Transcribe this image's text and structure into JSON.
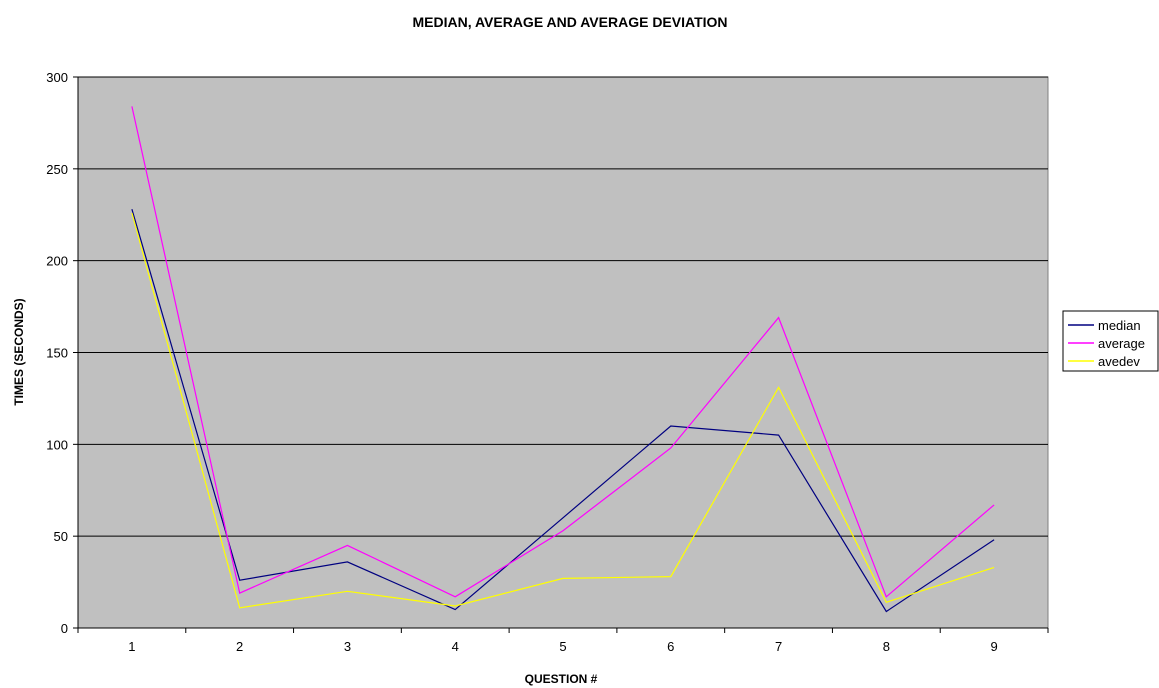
{
  "chart_data": {
    "type": "line",
    "title": "MEDIAN, AVERAGE AND AVERAGE DEVIATION",
    "xlabel": "QUESTION #",
    "ylabel": "TIMES (SECONDS)",
    "categories": [
      "1",
      "2",
      "3",
      "4",
      "5",
      "6",
      "7",
      "8",
      "9"
    ],
    "ylim": [
      0,
      300
    ],
    "yticks": [
      "0",
      "50",
      "100",
      "150",
      "200",
      "250",
      "300"
    ],
    "grid": true,
    "legend_position": "right",
    "plot_background": "#c0c0c0",
    "series": [
      {
        "name": "median",
        "color": "#000080",
        "values": [
          228,
          26,
          36,
          10,
          60,
          110,
          105,
          9,
          48
        ]
      },
      {
        "name": "average",
        "color": "#ff00ff",
        "values": [
          284,
          19,
          45,
          17,
          53,
          98,
          169,
          17,
          67
        ]
      },
      {
        "name": "avedev",
        "color": "#ffff00",
        "values": [
          226,
          11,
          20,
          12,
          27,
          28,
          131,
          14,
          33
        ]
      }
    ]
  }
}
